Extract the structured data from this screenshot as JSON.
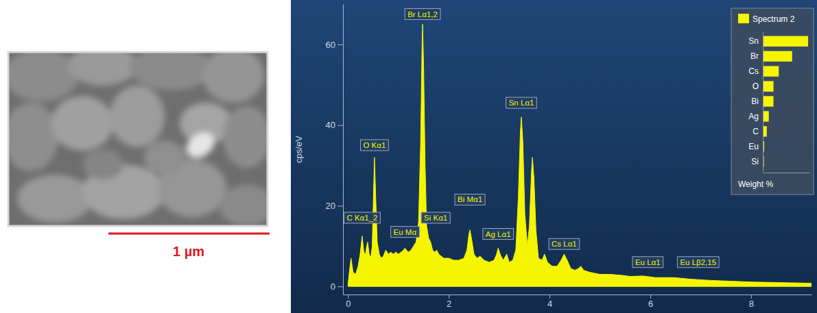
{
  "scale_bar": {
    "label": "1 µm"
  },
  "chart_data": [
    {
      "type": "area",
      "color": "#f5f500",
      "ylabel": "cps/eV",
      "xlim": [
        -0.1,
        9.2
      ],
      "xticks": [
        0,
        2,
        4,
        6,
        8
      ],
      "ylim": [
        -2,
        70
      ],
      "yticks": [
        0,
        20,
        40,
        60
      ],
      "x": [
        0.0,
        0.03,
        0.06,
        0.1,
        0.15,
        0.2,
        0.24,
        0.28,
        0.31,
        0.34,
        0.37,
        0.39,
        0.42,
        0.45,
        0.48,
        0.5,
        0.525,
        0.55,
        0.58,
        0.62,
        0.66,
        0.7,
        0.75,
        0.8,
        0.85,
        0.9,
        0.95,
        1.0,
        1.05,
        1.1,
        1.13,
        1.16,
        1.2,
        1.25,
        1.3,
        1.35,
        1.4,
        1.44,
        1.47,
        1.48,
        1.5,
        1.53,
        1.56,
        1.6,
        1.64,
        1.68,
        1.72,
        1.76,
        1.8,
        1.85,
        1.9,
        2.0,
        2.1,
        2.2,
        2.3,
        2.36,
        2.4,
        2.42,
        2.45,
        2.5,
        2.56,
        2.62,
        2.7,
        2.8,
        2.9,
        2.95,
        2.98,
        3.02,
        3.08,
        3.15,
        3.2,
        3.27,
        3.33,
        3.38,
        3.42,
        3.44,
        3.47,
        3.51,
        3.56,
        3.6,
        3.64,
        3.66,
        3.69,
        3.73,
        3.78,
        3.85,
        3.9,
        3.96,
        4.05,
        4.15,
        4.23,
        4.29,
        4.35,
        4.42,
        4.5,
        4.58,
        4.62,
        4.68,
        4.8,
        5.0,
        5.2,
        5.4,
        5.6,
        5.85,
        6.1,
        6.46,
        6.8,
        7.2,
        7.6,
        8.0,
        8.4,
        8.8,
        9.2
      ],
      "values": [
        0.5,
        4,
        7,
        3.5,
        3,
        5,
        8,
        12.5,
        9,
        7.5,
        10,
        11,
        8,
        7,
        10,
        20,
        32,
        22,
        11,
        8,
        7,
        7.5,
        9,
        8,
        8.5,
        8,
        8.5,
        8,
        8.5,
        9,
        9.5,
        9,
        8.5,
        9,
        10,
        11,
        16,
        35,
        60,
        65,
        55,
        30,
        15,
        12,
        11,
        9,
        8.5,
        9,
        8,
        7.5,
        7,
        7,
        6.5,
        6.5,
        7,
        9,
        13,
        14,
        12,
        8,
        7,
        7.5,
        6.5,
        6,
        6.5,
        8,
        9.5,
        8,
        6.5,
        8,
        6,
        6.5,
        9,
        22,
        38,
        42,
        36,
        18,
        10,
        15,
        28,
        32,
        27,
        14,
        7,
        6.5,
        8,
        6,
        5,
        5,
        6.5,
        8,
        6.5,
        4.5,
        4,
        4.5,
        5,
        4,
        3.5,
        3,
        3,
        2.8,
        2.5,
        2.6,
        2.2,
        2.2,
        1.8,
        1.5,
        1.3,
        1.1,
        1,
        0.9,
        0.8
      ],
      "annotations": [
        {
          "text": "C Kα1_2",
          "x": 0.28,
          "y": 15.5
        },
        {
          "text": "O Kα1",
          "x": 0.525,
          "y": 33.5
        },
        {
          "text": "Eu Mα",
          "x": 1.13,
          "y": 12
        },
        {
          "text": "Br Lα1,2",
          "x": 1.48,
          "y": 66
        },
        {
          "text": "Si Kα1",
          "x": 1.74,
          "y": 15.5
        },
        {
          "text": "Bi Mα1",
          "x": 2.42,
          "y": 20
        },
        {
          "text": "Ag Lα1",
          "x": 2.98,
          "y": 11.5
        },
        {
          "text": "Sn Lα1",
          "x": 3.44,
          "y": 44
        },
        {
          "text": "Cs Lα1",
          "x": 4.29,
          "y": 9
        },
        {
          "text": "Eu Lα1",
          "x": 5.95,
          "y": 4.5
        },
        {
          "text": "Eu Lβ2,15",
          "x": 6.95,
          "y": 4.5
        }
      ]
    },
    {
      "type": "bar",
      "orientation": "horizontal",
      "legend": "top",
      "tick_labels": "y",
      "xlabel": "Weight %",
      "xlim": [
        0,
        35
      ],
      "categories": [
        "Sn",
        "Br",
        "Cs",
        "O",
        "Bi",
        "Ag",
        "C",
        "Eu",
        "Si"
      ],
      "series": [
        {
          "name": "Spectrum 2",
          "color": "#f5f500",
          "values": [
            34,
            22,
            12,
            8,
            8,
            4.5,
            3,
            1,
            0.8
          ]
        }
      ]
    }
  ]
}
